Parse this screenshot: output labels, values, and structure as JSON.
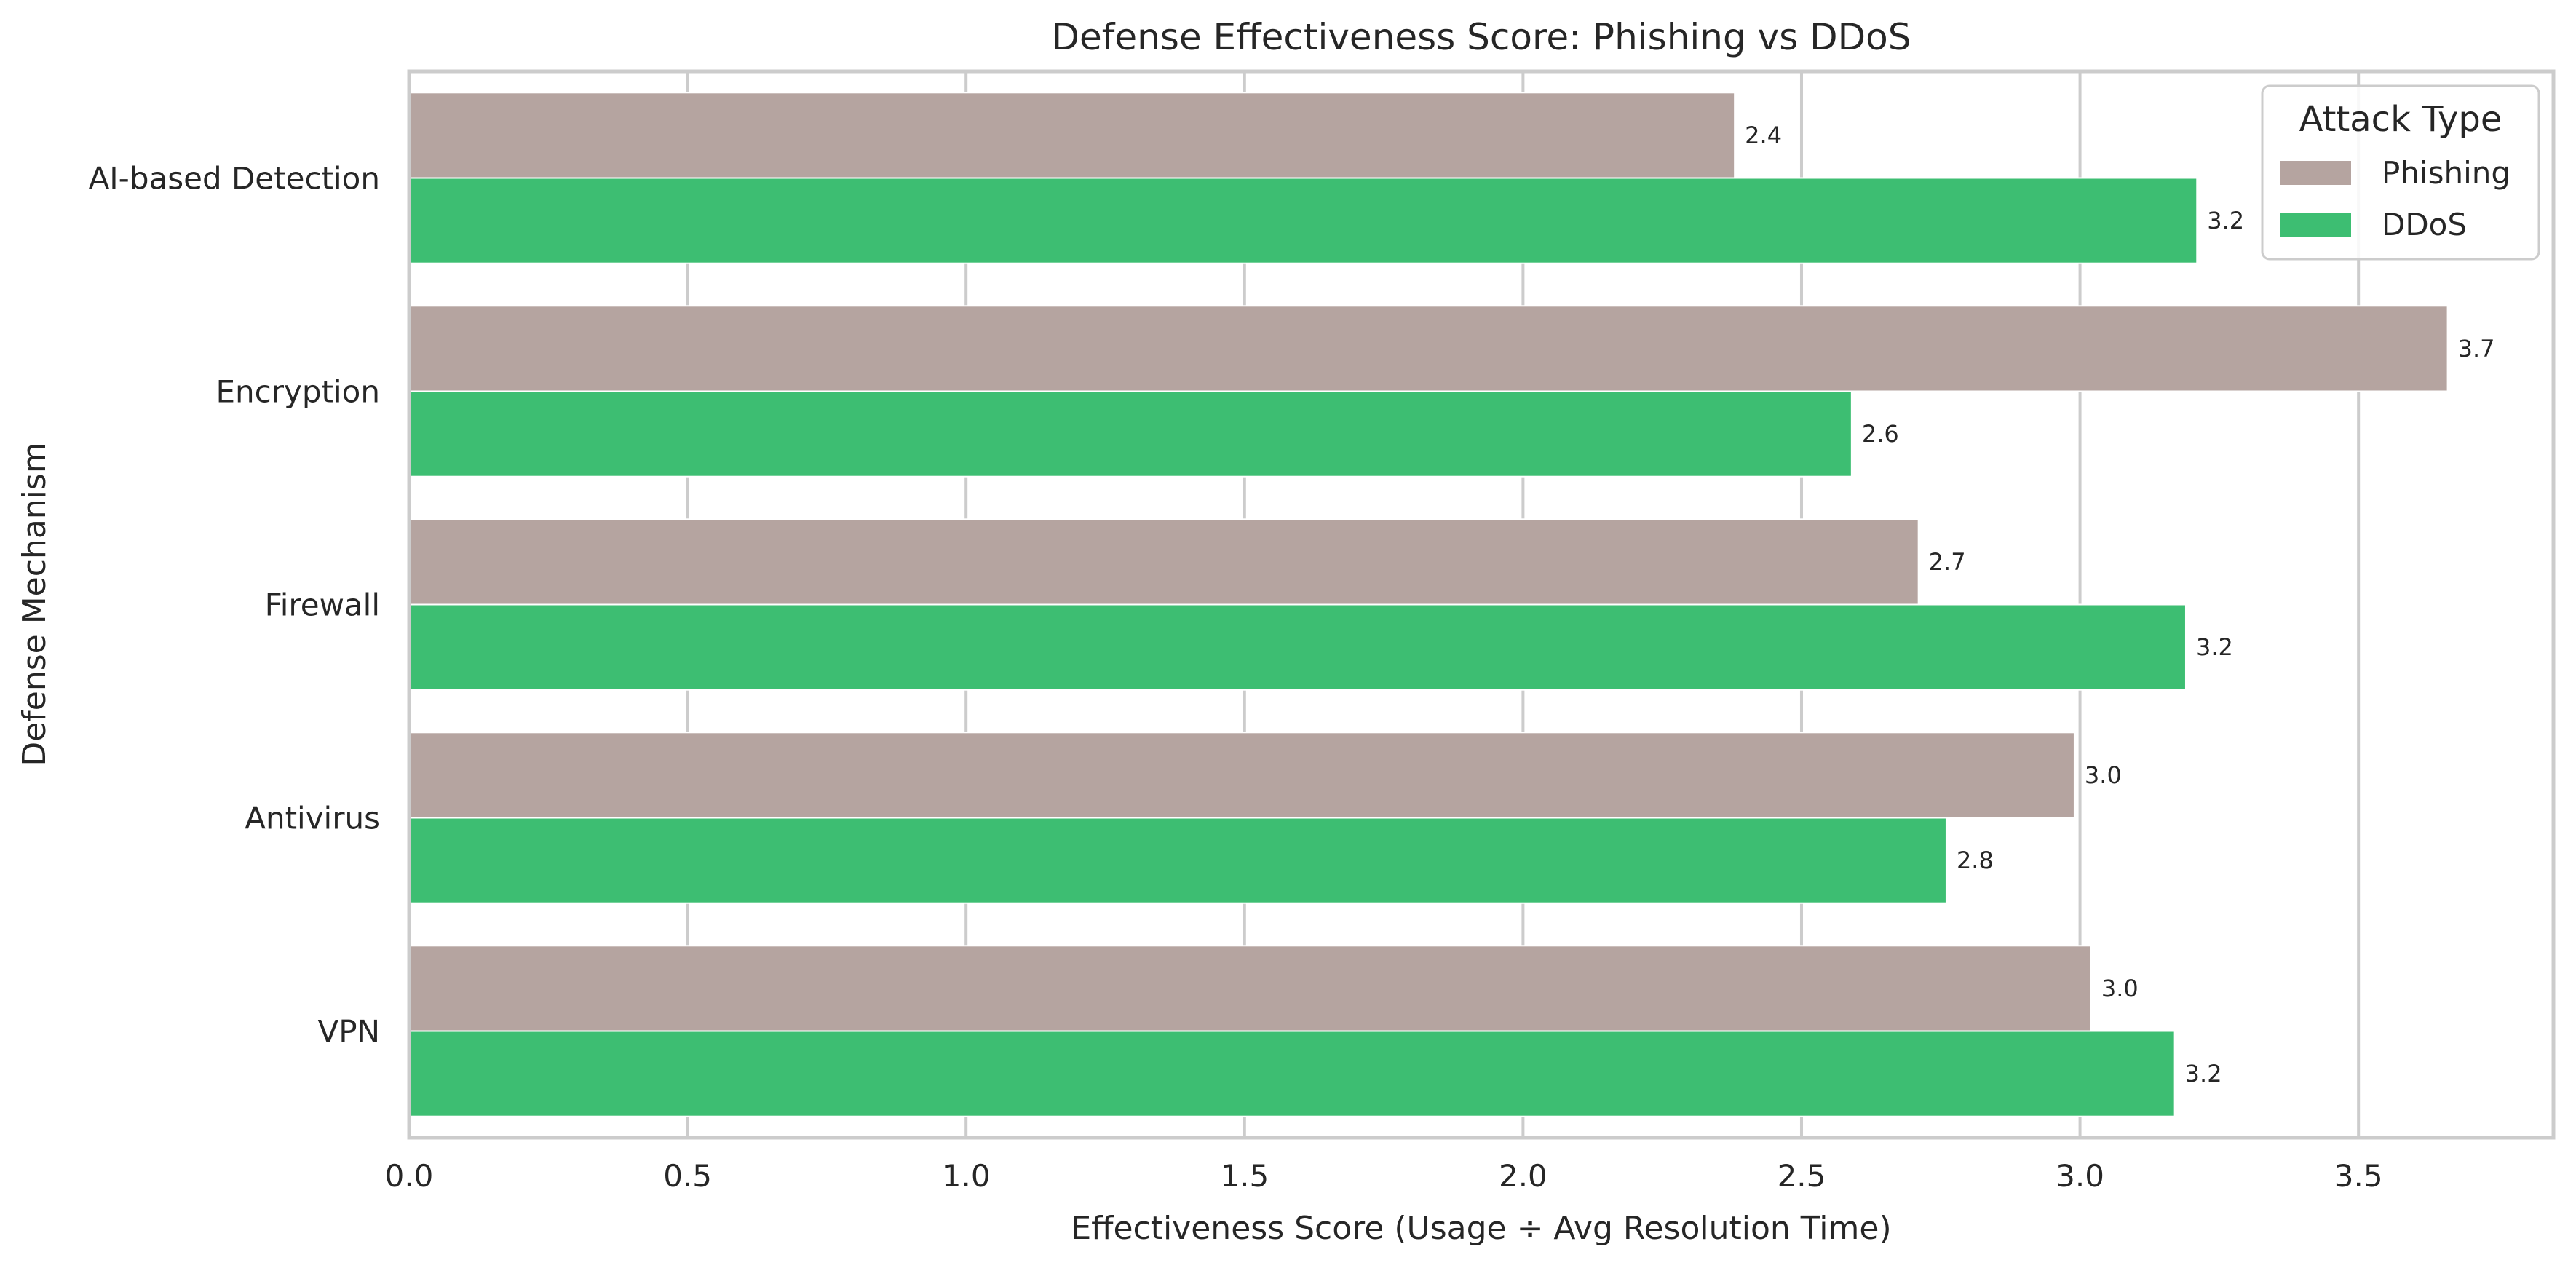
{
  "chart_data": {
    "type": "bar",
    "orientation": "horizontal",
    "title": "Defense Effectiveness Score: Phishing vs DDoS",
    "xlabel": "Effectiveness Score (Usage ÷ Avg Resolution Time)",
    "ylabel": "Defense Mechanism",
    "categories": [
      "AI-based Detection",
      "Encryption",
      "Firewall",
      "Antivirus",
      "VPN"
    ],
    "series": [
      {
        "name": "Phishing",
        "color": "#b5a4a0",
        "values": [
          2.38,
          3.66,
          2.71,
          2.99,
          3.02
        ],
        "labels": [
          "2.4",
          "3.7",
          "2.7",
          "3.0",
          "3.0"
        ]
      },
      {
        "name": "DDoS",
        "color": "#3dbe72",
        "values": [
          3.21,
          2.59,
          3.19,
          2.76,
          3.17
        ],
        "labels": [
          "3.2",
          "2.6",
          "3.2",
          "2.8",
          "3.2"
        ]
      }
    ],
    "xlim": [
      0,
      3.85
    ],
    "xticks": [
      "0.0",
      "0.5",
      "1.0",
      "1.5",
      "2.0",
      "2.5",
      "3.0",
      "3.5"
    ],
    "grid": true,
    "legend": {
      "title": "Attack Type",
      "position": "top-right"
    }
  }
}
